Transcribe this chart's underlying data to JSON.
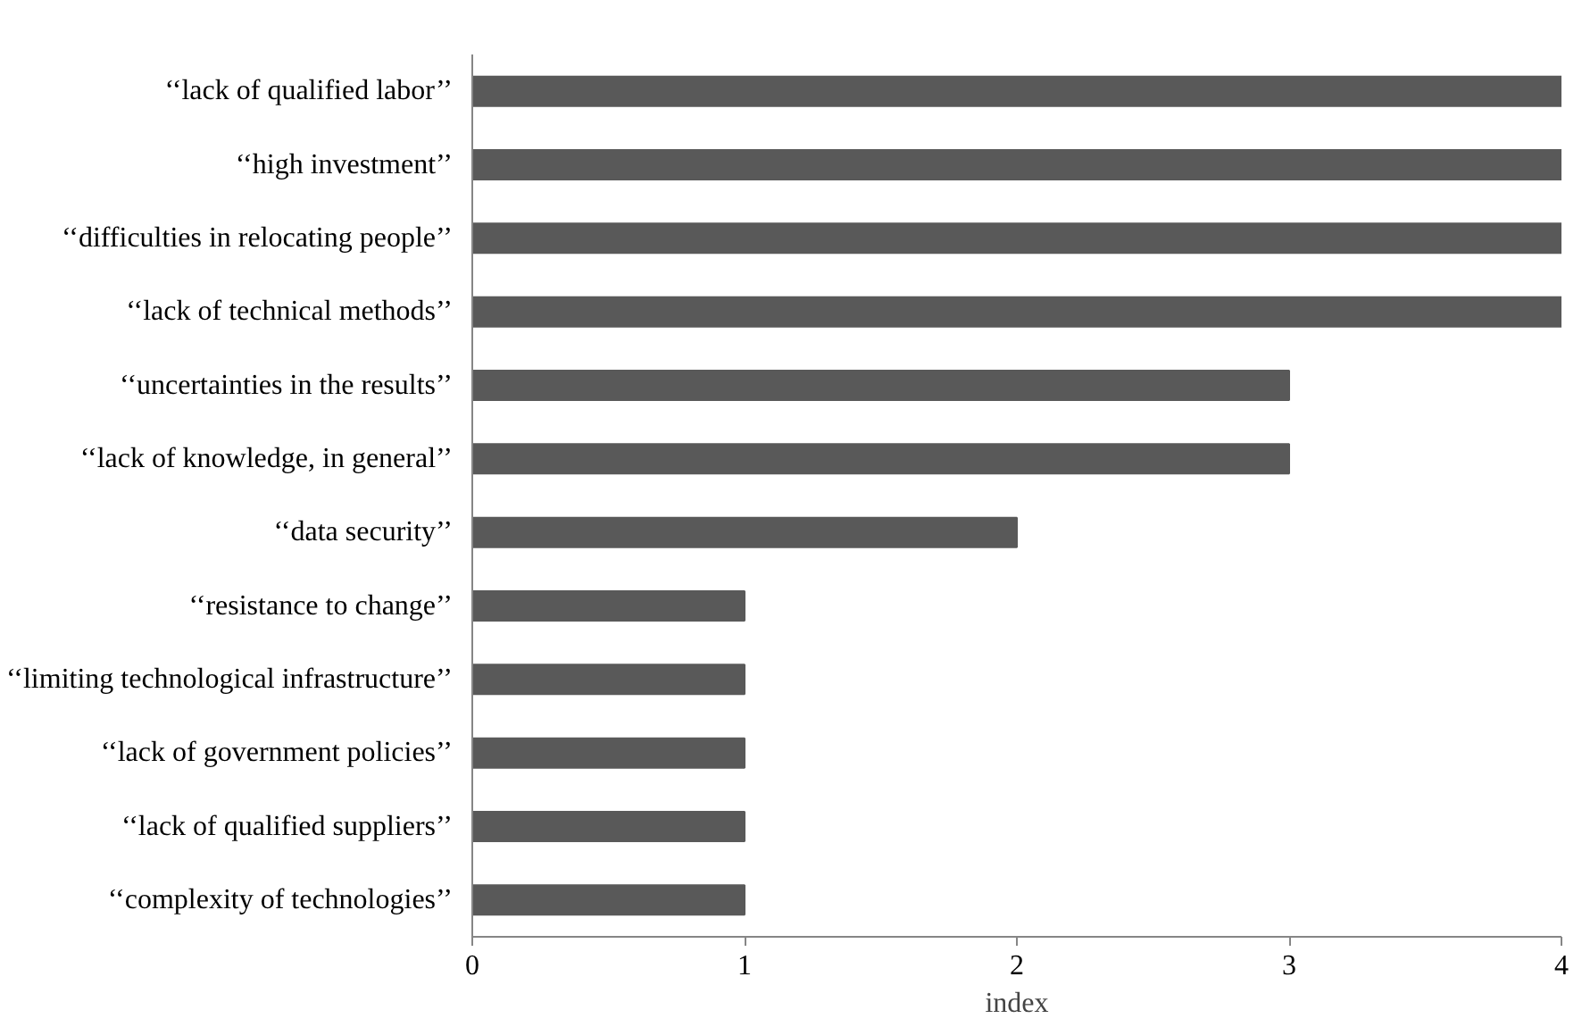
{
  "chart_data": {
    "type": "bar",
    "orientation": "horizontal",
    "xlabel": "index",
    "categories": [
      "‘‘lack of qualified labor’’",
      "‘‘high investment’’",
      "‘‘difficulties in relocating people’’",
      "‘‘lack of technical methods’’",
      "‘‘uncertainties in the results’’",
      "‘‘lack of knowledge, in general’’",
      "‘‘data security’’",
      "‘‘resistance to change’’",
      "‘‘limiting technological infrastructure’’",
      "‘‘lack of government policies’’",
      "‘‘lack of qualified suppliers’’",
      "‘‘complexity of technologies’’"
    ],
    "values": [
      4,
      4,
      4,
      4,
      3,
      3,
      2,
      1,
      1,
      1,
      1,
      1
    ],
    "color": "#595959",
    "xlim": [
      0,
      4
    ],
    "xticks": [
      0,
      1,
      2,
      3,
      4
    ],
    "grid": false
  }
}
